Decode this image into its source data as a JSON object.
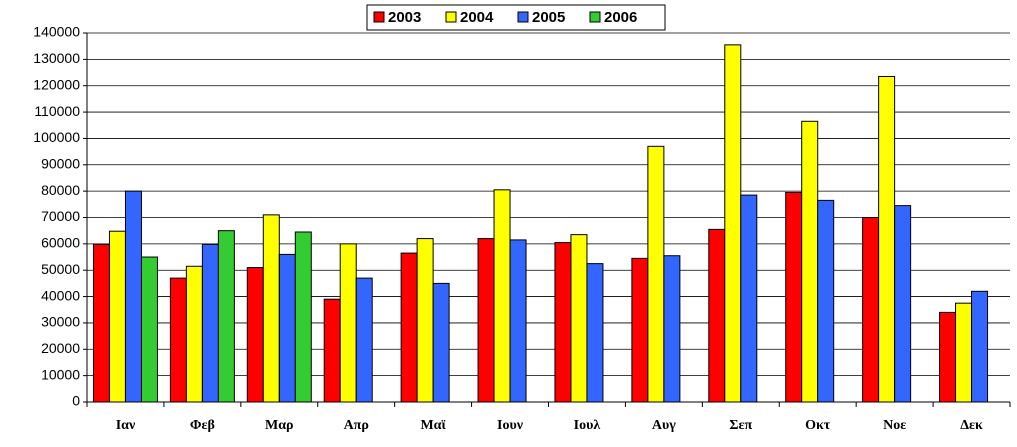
{
  "chart_data": {
    "type": "bar",
    "categories": [
      "Ιαν",
      "Φεβ",
      "Μαρ",
      "Απρ",
      "Μαϊ",
      "Ιουν",
      "Ιουλ",
      "Αυγ",
      "Σεπ",
      "Οκτ",
      "Νοε",
      "Δεκ"
    ],
    "series": [
      {
        "name": "2003",
        "color": "#ff0000",
        "values": [
          59800,
          47000,
          51000,
          39000,
          56500,
          62000,
          60500,
          54500,
          65500,
          79500,
          70000,
          34000
        ]
      },
      {
        "name": "2004",
        "color": "#ffff00",
        "values": [
          64800,
          51500,
          71000,
          60000,
          62000,
          80500,
          63500,
          97000,
          135500,
          106500,
          123500,
          37500
        ]
      },
      {
        "name": "2005",
        "color": "#3366ff",
        "values": [
          80000,
          59800,
          56000,
          47000,
          45000,
          61500,
          52500,
          55500,
          78500,
          76500,
          74500,
          42000
        ]
      },
      {
        "name": "2006",
        "color": "#33cc33",
        "values": [
          55000,
          65000,
          64500,
          null,
          null,
          null,
          null,
          null,
          null,
          null,
          null,
          null
        ]
      }
    ],
    "ylim": [
      0,
      140000
    ],
    "yticks": [
      0,
      10000,
      20000,
      30000,
      40000,
      50000,
      60000,
      70000,
      80000,
      90000,
      100000,
      110000,
      120000,
      130000,
      140000
    ],
    "grid": true,
    "legend": "top"
  }
}
